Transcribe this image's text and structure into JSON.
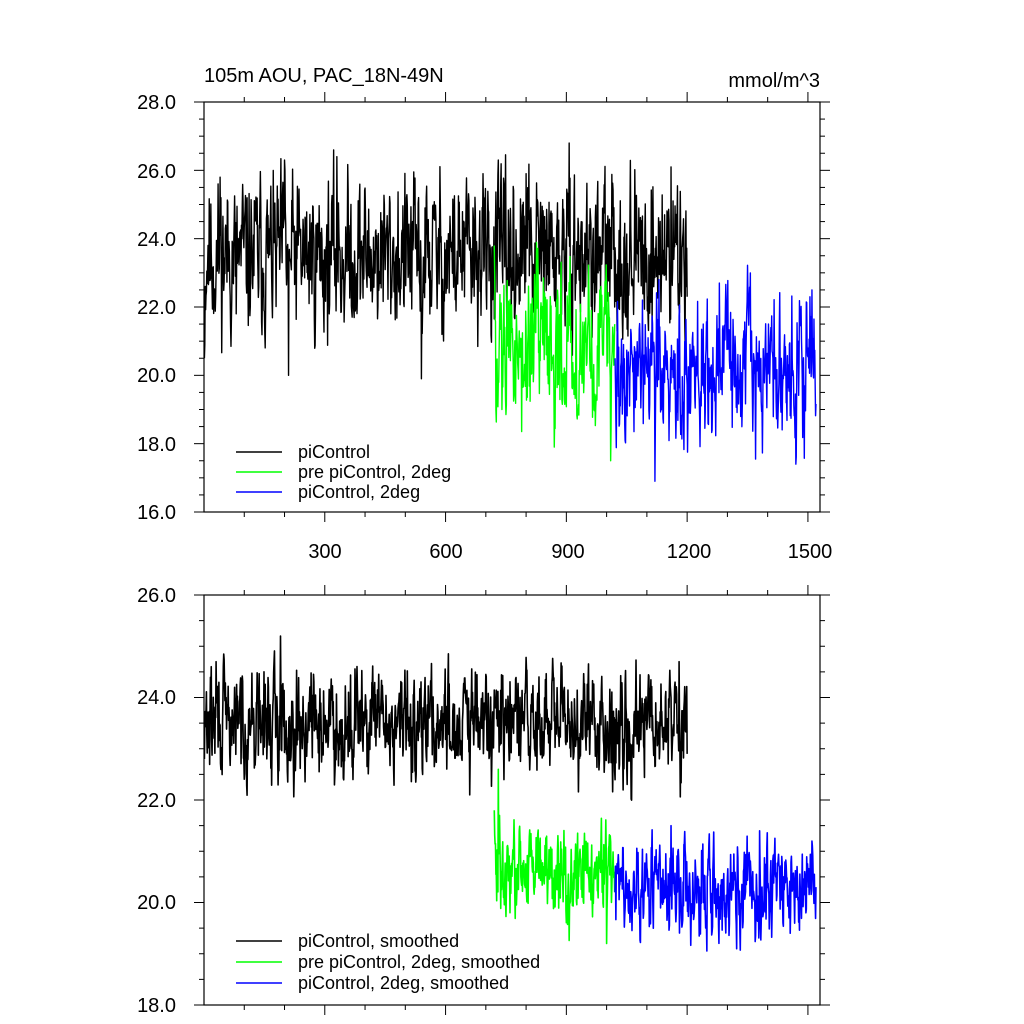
{
  "chart_data": [
    {
      "type": "line",
      "title": "105m AOU, PAC_18N-49N",
      "units": "mmol/m^3",
      "ylim": [
        16.0,
        28.0
      ],
      "xlim": [
        0,
        1530
      ],
      "yticks": [
        "16.0",
        "18.0",
        "20.0",
        "22.0",
        "24.0",
        "26.0",
        "28.0"
      ],
      "xticks": [
        "300",
        "600",
        "900",
        "1200",
        "1500"
      ],
      "legend_placement": "bottom-left",
      "series": [
        {
          "name": "piControl",
          "color": "#000000",
          "x_start": 1,
          "x_end": 1200,
          "mean": 23.5,
          "amp": 1.1,
          "anchors": [
            [
              1,
              20.5
            ],
            [
              10,
              23.8
            ],
            [
              40,
              25.8
            ],
            [
              80,
              21.8
            ],
            [
              200,
              26.3
            ],
            [
              210,
              20.0
            ],
            [
              330,
              26.4
            ],
            [
              540,
              26.0
            ],
            [
              540,
              19.9
            ],
            [
              800,
              25.9
            ],
            [
              1160,
              26.1
            ],
            [
              1200,
              22.3
            ]
          ]
        },
        {
          "name": "pre piControl, 2deg",
          "color": "#00ff00",
          "x_start": 721,
          "x_end": 1020,
          "mean": 20.8,
          "amp": 1.0,
          "anchors": [
            [
              721,
              23.8
            ],
            [
              740,
              19.0
            ],
            [
              830,
              22.8
            ],
            [
              870,
              17.9
            ],
            [
              1010,
              17.5
            ],
            [
              1020,
              21.5
            ]
          ]
        },
        {
          "name": "piControl, 2deg",
          "color": "#0000ff",
          "x_start": 1021,
          "x_end": 1520,
          "mean": 20.2,
          "amp": 0.95,
          "anchors": [
            [
              1021,
              20.5
            ],
            [
              1120,
              16.9
            ],
            [
              1130,
              22.8
            ],
            [
              1280,
              22.7
            ],
            [
              1470,
              17.4
            ],
            [
              1510,
              22.5
            ]
          ]
        }
      ]
    },
    {
      "type": "line",
      "ylim": [
        18.0,
        26.0
      ],
      "xlim": [
        0,
        1530
      ],
      "yticks": [
        "18.0",
        "20.0",
        "22.0",
        "24.0",
        "26.0"
      ],
      "legend_placement": "bottom-left",
      "series": [
        {
          "name": "piControl, smoothed",
          "color": "#000000",
          "x_start": 1,
          "x_end": 1200,
          "mean": 23.5,
          "amp": 0.5,
          "anchors": [
            [
              1,
              22.8
            ],
            [
              30,
              24.7
            ],
            [
              190,
              25.2
            ],
            [
              660,
              24.9
            ],
            [
              660,
              22.1
            ],
            [
              1180,
              24.7
            ],
            [
              1200,
              22.9
            ]
          ]
        },
        {
          "name": "pre piControl, 2deg, smoothed",
          "color": "#00ff00",
          "x_start": 721,
          "x_end": 1020,
          "mean": 20.6,
          "amp": 0.45,
          "anchors": [
            [
              721,
              21.8
            ],
            [
              731,
              22.6
            ],
            [
              760,
              19.8
            ],
            [
              1000,
              19.2
            ],
            [
              1020,
              20.2
            ]
          ]
        },
        {
          "name": "piControl, 2deg, smoothed",
          "color": "#0000ff",
          "x_start": 1021,
          "x_end": 1520,
          "mean": 20.2,
          "amp": 0.45,
          "anchors": [
            [
              1021,
              20.2
            ],
            [
              1160,
              18.7
            ],
            [
              1160,
              21.5
            ],
            [
              1380,
              21.4
            ],
            [
              1510,
              21.2
            ],
            [
              1520,
              20.3
            ]
          ]
        }
      ]
    }
  ]
}
